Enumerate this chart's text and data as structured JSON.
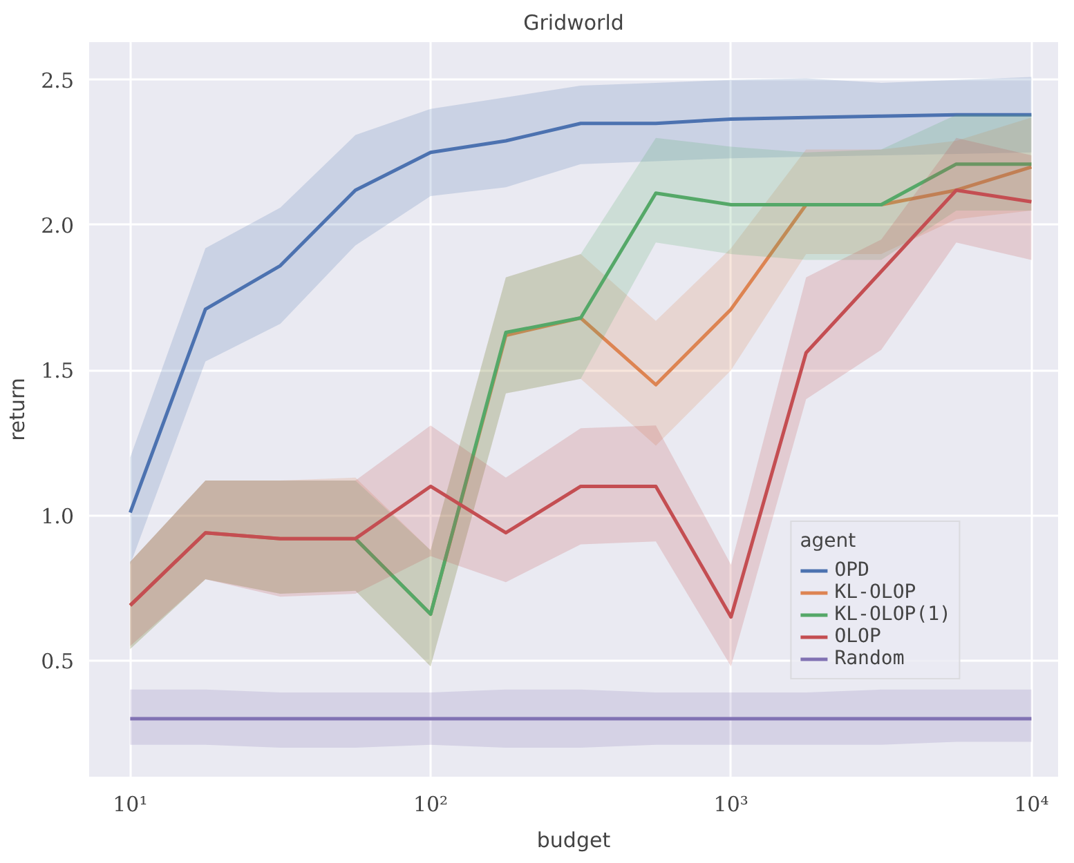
{
  "chart_data": {
    "type": "line",
    "title": "Gridworld",
    "xlabel": "budget",
    "ylabel": "return",
    "legend_title": "agent",
    "log": "x",
    "grid": true,
    "legend": "bottom right",
    "line_style": "solid",
    "marker": "none",
    "x": [
      10,
      17.8,
      31.6,
      56.2,
      100,
      178,
      316,
      562,
      1000,
      1778,
      3162,
      5623,
      10000
    ],
    "xlim": [
      7.3,
      12270
    ],
    "xticks": [
      {
        "value": 10,
        "label": "10¹"
      },
      {
        "value": 100,
        "label": "10²"
      },
      {
        "value": 1000,
        "label": "10³"
      },
      {
        "value": 10000,
        "label": "10⁴"
      }
    ],
    "ylim": [
      0.1,
      2.63
    ],
    "yticks": [
      {
        "value": 0.5,
        "label": "0.5"
      },
      {
        "value": 1.0,
        "label": "1.0"
      },
      {
        "value": 1.5,
        "label": "1.5"
      },
      {
        "value": 2.0,
        "label": "2.0"
      },
      {
        "value": 2.5,
        "label": "2.5"
      }
    ],
    "series": [
      {
        "name": "OPD",
        "color": "#4c72b0",
        "values": [
          1.01,
          1.71,
          1.86,
          2.12,
          2.25,
          2.29,
          2.35,
          2.35,
          2.365,
          2.37,
          2.375,
          2.38,
          2.38
        ],
        "lower": [
          0.83,
          1.53,
          1.66,
          1.93,
          2.1,
          2.13,
          2.21,
          2.22,
          2.23,
          2.235,
          2.24,
          2.245,
          2.25
        ],
        "upper": [
          1.2,
          1.92,
          2.06,
          2.31,
          2.4,
          2.44,
          2.48,
          2.49,
          2.5,
          2.505,
          2.49,
          2.5,
          2.51
        ]
      },
      {
        "name": "KL-OLOP",
        "color": "#dd8452",
        "values": [
          0.69,
          0.94,
          0.92,
          0.92,
          0.66,
          1.62,
          1.68,
          1.45,
          1.71,
          2.07,
          2.07,
          2.12,
          2.2
        ],
        "lower": [
          0.54,
          0.78,
          0.73,
          0.74,
          0.48,
          1.42,
          1.47,
          1.24,
          1.5,
          1.9,
          1.9,
          2.02,
          2.05
        ],
        "upper": [
          0.84,
          1.12,
          1.12,
          1.13,
          0.88,
          1.82,
          1.9,
          1.67,
          1.92,
          2.26,
          2.26,
          2.29,
          2.37
        ]
      },
      {
        "name": "KL-OLOP(1)",
        "color": "#55a868",
        "values": [
          null,
          null,
          null,
          0.92,
          0.66,
          1.63,
          1.68,
          2.11,
          2.07,
          2.07,
          2.07,
          2.21,
          2.21
        ],
        "lower": [
          0.54,
          0.78,
          0.73,
          0.74,
          0.48,
          1.42,
          1.47,
          1.94,
          1.9,
          1.88,
          1.88,
          2.05,
          2.05
        ],
        "upper": [
          0.84,
          1.12,
          1.12,
          1.12,
          0.88,
          1.82,
          1.9,
          2.3,
          2.27,
          2.25,
          2.26,
          2.38,
          2.38
        ]
      },
      {
        "name": "OLOP",
        "color": "#c44e52",
        "values": [
          0.69,
          0.94,
          0.92,
          0.92,
          1.1,
          0.94,
          1.1,
          1.1,
          0.65,
          1.56,
          1.84,
          2.12,
          2.08
        ],
        "lower": [
          0.55,
          0.78,
          0.72,
          0.73,
          0.86,
          0.77,
          0.9,
          0.91,
          0.48,
          1.4,
          1.57,
          1.94,
          1.88
        ],
        "upper": [
          0.84,
          1.12,
          1.12,
          1.12,
          1.31,
          1.13,
          1.3,
          1.31,
          0.83,
          1.82,
          1.95,
          2.3,
          2.24
        ]
      },
      {
        "name": "Random",
        "color": "#8172b3",
        "values": [
          0.3,
          0.3,
          0.3,
          0.3,
          0.3,
          0.3,
          0.3,
          0.3,
          0.3,
          0.3,
          0.3,
          0.3,
          0.3
        ],
        "lower": [
          0.21,
          0.21,
          0.2,
          0.2,
          0.21,
          0.2,
          0.2,
          0.21,
          0.21,
          0.21,
          0.21,
          0.22,
          0.22
        ],
        "upper": [
          0.4,
          0.4,
          0.39,
          0.39,
          0.39,
          0.4,
          0.4,
          0.39,
          0.39,
          0.39,
          0.4,
          0.4,
          0.4
        ]
      }
    ]
  }
}
